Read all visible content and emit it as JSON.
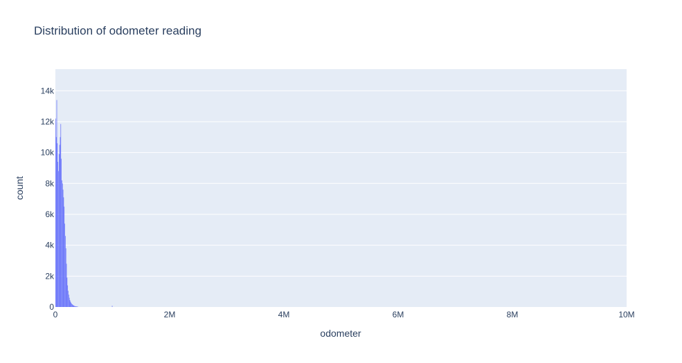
{
  "chart_data": {
    "type": "bar",
    "title": "Distribution of odometer reading",
    "xlabel": "odometer",
    "ylabel": "count",
    "xlim": [
      0,
      10000000
    ],
    "ylim": [
      0,
      15400
    ],
    "x_ticks": [
      {
        "value": 0,
        "label": "0"
      },
      {
        "value": 2000000,
        "label": "2M"
      },
      {
        "value": 4000000,
        "label": "4M"
      },
      {
        "value": 6000000,
        "label": "6M"
      },
      {
        "value": 8000000,
        "label": "8M"
      },
      {
        "value": 10000000,
        "label": "10M"
      }
    ],
    "y_ticks": [
      {
        "value": 0,
        "label": "0"
      },
      {
        "value": 2000,
        "label": "2k"
      },
      {
        "value": 4000,
        "label": "4k"
      },
      {
        "value": 6000,
        "label": "6k"
      },
      {
        "value": 8000,
        "label": "8k"
      },
      {
        "value": 10000,
        "label": "10k"
      },
      {
        "value": 12000,
        "label": "12k"
      },
      {
        "value": 14000,
        "label": "14k"
      }
    ],
    "grid": true,
    "bin_width": 10000,
    "bar_color": "#636efa",
    "plot_bg": "#e5ecf6",
    "series": [
      {
        "x_start": [
          0,
          10000,
          20000,
          30000,
          40000,
          50000,
          60000,
          70000,
          80000,
          90000,
          100000,
          110000,
          120000,
          130000,
          140000,
          150000,
          160000,
          170000,
          180000,
          190000,
          200000,
          210000,
          220000,
          230000,
          240000,
          250000,
          260000,
          270000,
          280000,
          290000,
          300000,
          310000,
          320000,
          330000,
          340000,
          350000,
          360000,
          370000,
          380000,
          390000,
          990000
        ],
        "values": [
          12200,
          11000,
          13400,
          10600,
          9400,
          8800,
          9900,
          10500,
          11000,
          11850,
          9600,
          8200,
          8000,
          7600,
          7100,
          6500,
          5400,
          4600,
          3800,
          2800,
          1900,
          1400,
          1050,
          800,
          600,
          450,
          350,
          280,
          220,
          180,
          140,
          110,
          90,
          70,
          55,
          45,
          38,
          30,
          25,
          20,
          80
        ]
      }
    ]
  }
}
